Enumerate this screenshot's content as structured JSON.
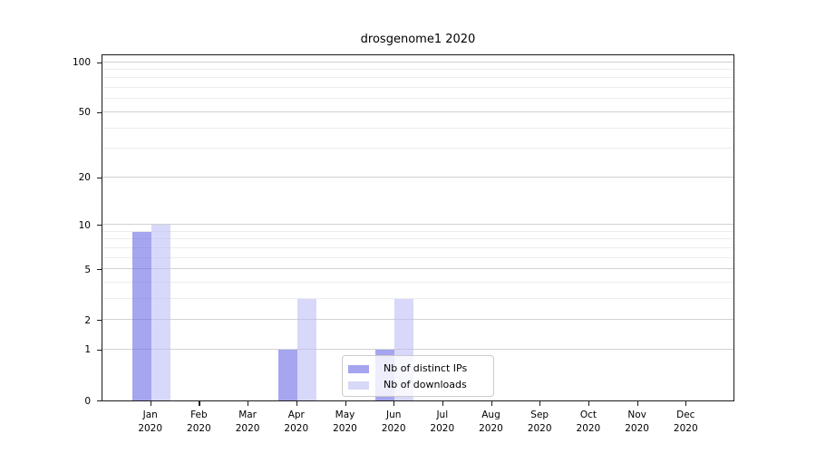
{
  "title": "drosgenome1 2020",
  "chart_data": {
    "type": "bar",
    "title": "drosgenome1 2020",
    "categories": [
      "Jan",
      "Feb",
      "Mar",
      "Apr",
      "May",
      "Jun",
      "Jul",
      "Aug",
      "Sep",
      "Oct",
      "Nov",
      "Dec"
    ],
    "x_tick_year": "2020",
    "series": [
      {
        "name": "Nb of distinct IPs",
        "values": [
          9,
          0,
          0,
          1,
          0,
          1,
          0,
          0,
          0,
          0,
          0,
          0
        ],
        "bar_color": "rgba(105,105,230,0.6)",
        "legend_color": "#a5a5ef"
      },
      {
        "name": "Nb of downloads",
        "values": [
          10,
          0,
          0,
          3,
          0,
          3,
          0,
          0,
          0,
          0,
          0,
          0
        ],
        "bar_color": "rgba(190,190,247,0.6)",
        "legend_color": "#d8d8f9"
      }
    ],
    "y_ticks": [
      0,
      1,
      2,
      5,
      10,
      20,
      50,
      100
    ],
    "y_minor_ticks": [
      3,
      4,
      6,
      7,
      8,
      9,
      30,
      40,
      60,
      70,
      80,
      90
    ],
    "scale": "log1p",
    "ylim": [
      0,
      113
    ],
    "grid": "on",
    "legend_position": "bottom-center-inside",
    "colors": {
      "axis": "#1a1a1a",
      "grid_major": "#d2d2d2",
      "grid_minor": "#ececec",
      "legend_border": "#cbcbcb",
      "background": "#ffffff"
    }
  }
}
